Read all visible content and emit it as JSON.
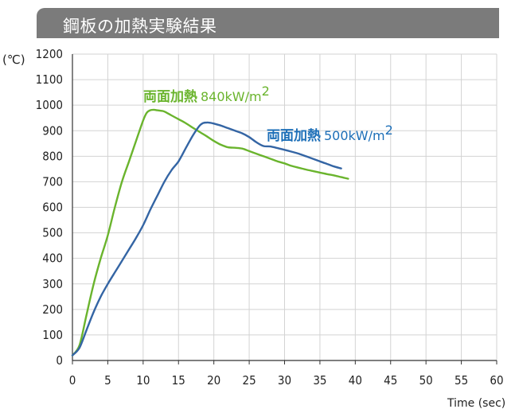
{
  "header": {
    "title": "鋼板の加熱実験結果"
  },
  "colors": {
    "header_bg": "#7b7b7b",
    "series_840": "#6ab42d",
    "series_500": "#3465a4",
    "label_500": "#1d6fb8",
    "grid": "#d3d3d3"
  },
  "chart_data": {
    "type": "line",
    "title": "鋼板の加熱実験結果",
    "ylabel": "(℃)",
    "xlabel": "Time (sec)",
    "xlim": [
      0,
      60
    ],
    "ylim": [
      0,
      1200
    ],
    "x_ticks": [
      0,
      5,
      10,
      15,
      20,
      25,
      30,
      35,
      40,
      45,
      50,
      55,
      60
    ],
    "y_ticks": [
      0,
      100,
      200,
      300,
      400,
      500,
      600,
      700,
      800,
      900,
      1000,
      1100,
      1200
    ],
    "grid": true,
    "series": [
      {
        "name": "両面加熱 840kW/m²",
        "label_bold": "両面加熱",
        "label_value": "840kW/m",
        "label_sup": "2",
        "x": [
          0,
          1,
          2,
          3,
          4,
          5,
          6,
          7,
          8,
          9,
          10,
          10.5,
          11,
          11.5,
          12,
          12.5,
          13,
          14,
          15,
          16,
          17,
          18,
          19,
          20,
          21,
          22,
          23,
          24,
          25,
          26,
          27,
          28,
          29,
          30,
          31,
          32,
          33,
          34,
          35,
          36,
          37,
          38,
          39
        ],
        "values": [
          20,
          60,
          180,
          300,
          400,
          490,
          600,
          700,
          780,
          860,
          940,
          970,
          980,
          982,
          980,
          978,
          975,
          960,
          945,
          930,
          912,
          895,
          878,
          860,
          845,
          835,
          833,
          830,
          820,
          810,
          800,
          790,
          780,
          772,
          762,
          755,
          748,
          742,
          736,
          730,
          725,
          718,
          712
        ]
      },
      {
        "name": "両面加熱 500kW/m²",
        "label_bold": "両面加熱",
        "label_value": "500kW/m",
        "label_sup": "2",
        "x": [
          0,
          1,
          2,
          3,
          4,
          5,
          6,
          7,
          8,
          9,
          10,
          11,
          12,
          13,
          14,
          15,
          16,
          17,
          18,
          18.5,
          19,
          19.5,
          20,
          21,
          22,
          23,
          24,
          25,
          26,
          27,
          28,
          29,
          30,
          31,
          32,
          33,
          34,
          35,
          36,
          37,
          38
        ],
        "values": [
          20,
          50,
          120,
          190,
          250,
          300,
          345,
          390,
          435,
          480,
          530,
          590,
          645,
          700,
          745,
          780,
          830,
          880,
          920,
          930,
          932,
          931,
          928,
          920,
          910,
          900,
          890,
          875,
          855,
          840,
          838,
          832,
          825,
          818,
          810,
          800,
          790,
          780,
          770,
          760,
          752
        ]
      }
    ]
  }
}
